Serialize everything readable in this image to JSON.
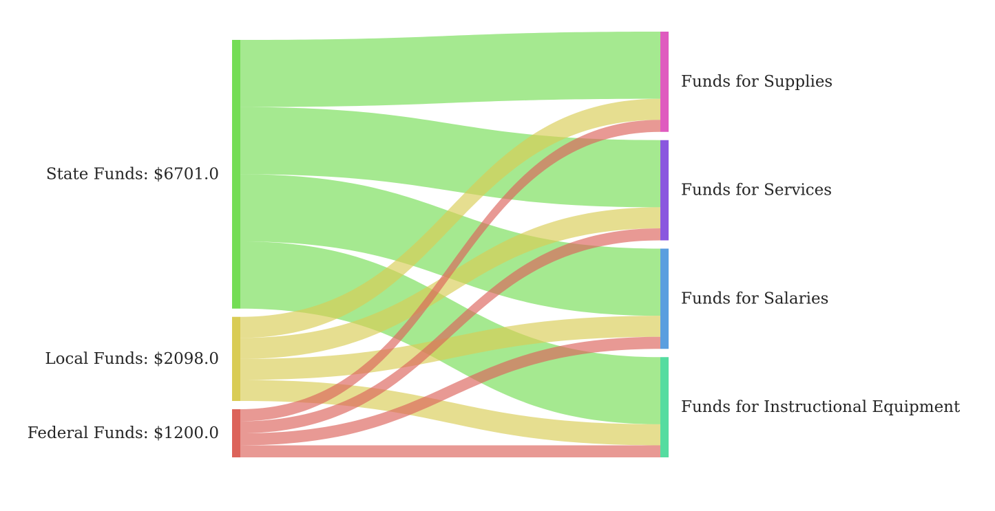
{
  "chart_data": {
    "type": "sankey",
    "title": "",
    "sources": [
      {
        "name": "State Funds",
        "label": "State Funds: $6701.0",
        "color": "#74dd55"
      },
      {
        "name": "Local Funds",
        "label": "Local Funds: $2098.0",
        "color": "#d9cc55"
      },
      {
        "name": "Federal Funds",
        "label": "Federal Funds: $1200.0",
        "color": "#dc635a"
      }
    ],
    "targets": [
      {
        "name": "Funds for Supplies",
        "label": "Funds for Supplies",
        "color": "#df5bbf"
      },
      {
        "name": "Funds for Services",
        "label": "Funds for Services",
        "color": "#8a57df"
      },
      {
        "name": "Funds for Salaries",
        "label": "Funds for Salaries",
        "color": "#5a9edf"
      },
      {
        "name": "Funds for Instructional Equipment",
        "label": "Funds for Instructional Equipment",
        "color": "#55dca0"
      }
    ],
    "flows": [
      {
        "source": "State Funds",
        "target": "Funds for Supplies",
        "value": 1675.25
      },
      {
        "source": "State Funds",
        "target": "Funds for Services",
        "value": 1675.25
      },
      {
        "source": "State Funds",
        "target": "Funds for Salaries",
        "value": 1675.25
      },
      {
        "source": "State Funds",
        "target": "Funds for Instructional Equipment",
        "value": 1675.25
      },
      {
        "source": "Local Funds",
        "target": "Funds for Supplies",
        "value": 524.5
      },
      {
        "source": "Local Funds",
        "target": "Funds for Services",
        "value": 524.5
      },
      {
        "source": "Local Funds",
        "target": "Funds for Salaries",
        "value": 524.5
      },
      {
        "source": "Local Funds",
        "target": "Funds for Instructional Equipment",
        "value": 524.5
      },
      {
        "source": "Federal Funds",
        "target": "Funds for Supplies",
        "value": 300
      },
      {
        "source": "Federal Funds",
        "target": "Funds for Services",
        "value": 300
      },
      {
        "source": "Federal Funds",
        "target": "Funds for Salaries",
        "value": 300
      },
      {
        "source": "Federal Funds",
        "target": "Funds for Instructional Equipment",
        "value": 300
      }
    ]
  }
}
